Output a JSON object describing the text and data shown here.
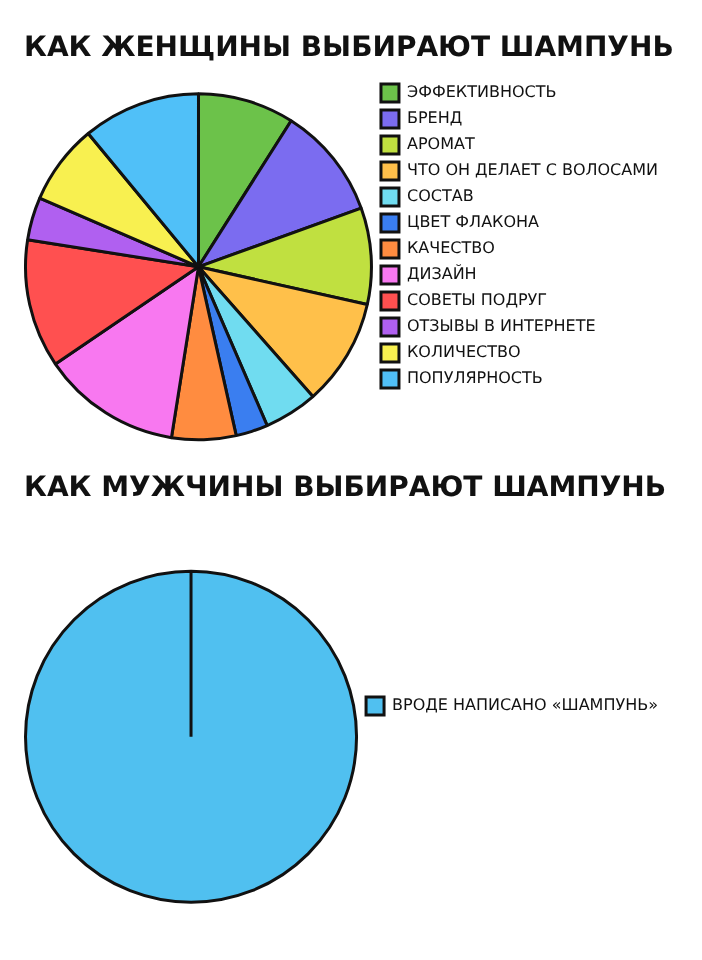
{
  "chart_data": [
    {
      "type": "pie",
      "title": "КАК ЖЕНЩИНЫ ВЫБИРАЮТ ШАМПУНЬ",
      "legend": "right",
      "categories": [
        "ЭФФЕКТИВНОСТЬ",
        "БРЕНД",
        "АРОМАТ",
        "ЧТО ОН ДЕЛАЕТ С ВОЛОСАМИ",
        "СОСТАВ",
        "ЦВЕТ ФЛАКОНА",
        "КАЧЕСТВО",
        "ДИЗАЙН",
        "СОВЕТЫ ПОДРУГ",
        "ОТЗЫВЫ В ИНТЕРНЕТЕ",
        "КОЛИЧЕСТВО",
        "ПОПУЛЯРНОСТЬ"
      ],
      "values": [
        9,
        10.5,
        9,
        10,
        5,
        3,
        6,
        13,
        12,
        4,
        7.5,
        11
      ],
      "colors": [
        "#6cc24a",
        "#7b6cf0",
        "#c0e040",
        "#ffc04a",
        "#70dcf0",
        "#3a7ef0",
        "#ff8c40",
        "#f878f0",
        "#ff5050",
        "#b060f0",
        "#f8f050",
        "#50c0f8"
      ]
    },
    {
      "type": "pie",
      "title": "КАК МУЖЧИНЫ ВЫБИРАЮТ ШАМПУНЬ",
      "legend": "right",
      "categories": [
        "ВРОДЕ НАПИСАНО «ШАМПУНЬ»"
      ],
      "values": [
        100
      ],
      "colors": [
        "#50c0f0"
      ]
    }
  ]
}
